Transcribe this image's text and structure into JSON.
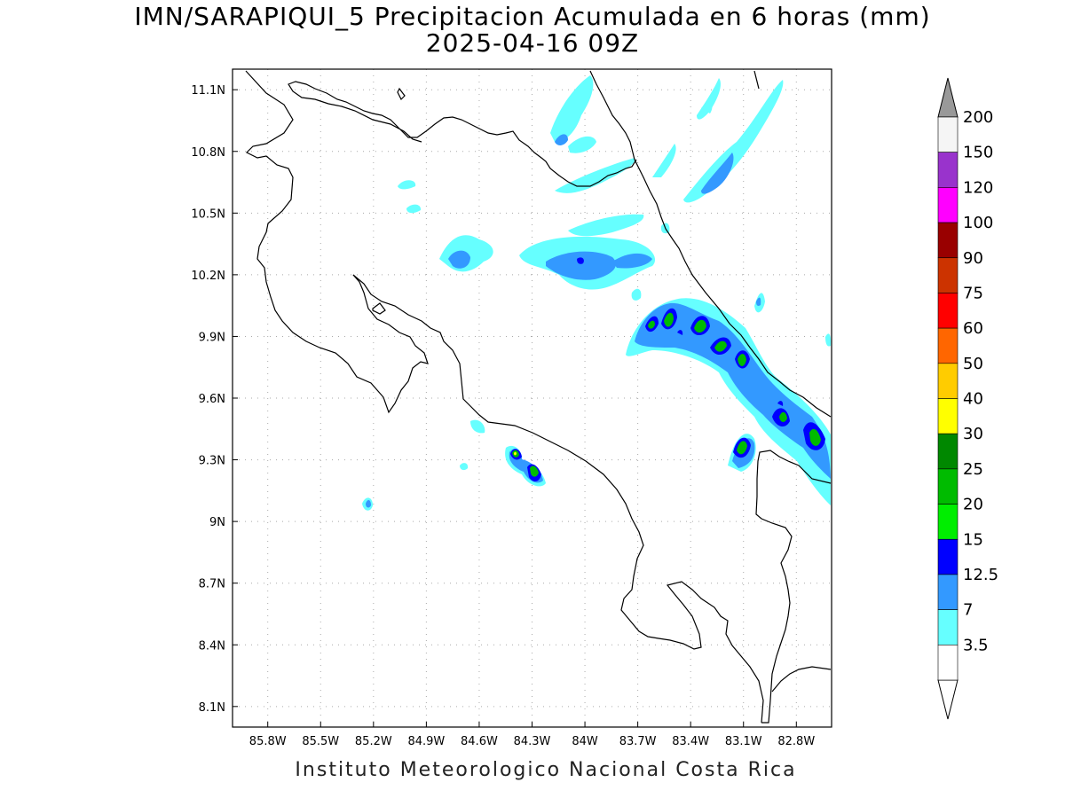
{
  "title": {
    "line1": "IMN/SARAPIQUI_5 Precipitacion Acumulada en 6 horas (mm)",
    "line2": "2025-04-16 09Z"
  },
  "footer": "Instituto Meteorologico Nacional Costa Rica",
  "axes": {
    "lon_min": -86.0,
    "lon_max": -82.6,
    "lat_min": 8.0,
    "lat_max": 11.2,
    "x_ticks": [
      {
        "value": -85.8,
        "label": "85.8W"
      },
      {
        "value": -85.5,
        "label": "85.5W"
      },
      {
        "value": -85.2,
        "label": "85.2W"
      },
      {
        "value": -84.9,
        "label": "84.9W"
      },
      {
        "value": -84.6,
        "label": "84.6W"
      },
      {
        "value": -84.3,
        "label": "84.3W"
      },
      {
        "value": -84.0,
        "label": "84W"
      },
      {
        "value": -83.7,
        "label": "83.7W"
      },
      {
        "value": -83.4,
        "label": "83.4W"
      },
      {
        "value": -83.1,
        "label": "83.1W"
      },
      {
        "value": -82.8,
        "label": "82.8W"
      }
    ],
    "y_ticks": [
      {
        "value": 8.1,
        "label": "8.1N"
      },
      {
        "value": 8.4,
        "label": "8.4N"
      },
      {
        "value": 8.7,
        "label": "8.7N"
      },
      {
        "value": 9.0,
        "label": "9N"
      },
      {
        "value": 9.3,
        "label": "9.3N"
      },
      {
        "value": 9.6,
        "label": "9.6N"
      },
      {
        "value": 9.9,
        "label": "9.9N"
      },
      {
        "value": 10.2,
        "label": "10.2N"
      },
      {
        "value": 10.5,
        "label": "10.5N"
      },
      {
        "value": 10.8,
        "label": "10.8N"
      },
      {
        "value": 11.1,
        "label": "11.1N"
      }
    ],
    "grid": "dotted"
  },
  "colorbar": {
    "levels": [
      {
        "label": "200",
        "color": "#f5f5f5"
      },
      {
        "label": "150",
        "color": "#9933cc"
      },
      {
        "label": "120",
        "color": "#ff00ff"
      },
      {
        "label": "100",
        "color": "#990000"
      },
      {
        "label": "90",
        "color": "#cc3300"
      },
      {
        "label": "75",
        "color": "#ff0000"
      },
      {
        "label": "60",
        "color": "#ff6600"
      },
      {
        "label": "50",
        "color": "#ffcc00"
      },
      {
        "label": "40",
        "color": "#ffff00"
      },
      {
        "label": "30",
        "color": "#008800"
      },
      {
        "label": "25",
        "color": "#00bb00"
      },
      {
        "label": "20",
        "color": "#00ee00"
      },
      {
        "label": "15",
        "color": "#0000ff"
      },
      {
        "label": "12.5",
        "color": "#3399ff"
      },
      {
        "label": "7",
        "color": "#66ffff"
      },
      {
        "label": "3.5",
        "color": "#ffffff"
      }
    ],
    "over_color": "#999999",
    "under_color": "#ffffff"
  },
  "precip_cells": [
    {
      "lon": -84.65,
      "lat": 10.35,
      "level": 7
    },
    {
      "lon": -83.95,
      "lat": 10.35,
      "level": 12.5
    },
    {
      "lon": -83.35,
      "lat": 10.8,
      "level": 7
    },
    {
      "lon": -83.9,
      "lat": 11.0,
      "level": 7
    },
    {
      "lon": -83.55,
      "lat": 10.0,
      "level": 25
    },
    {
      "lon": -83.45,
      "lat": 10.05,
      "level": 25
    },
    {
      "lon": -83.3,
      "lat": 10.0,
      "level": 25
    },
    {
      "lon": -83.15,
      "lat": 9.95,
      "level": 25
    },
    {
      "lon": -83.05,
      "lat": 9.85,
      "level": 25
    },
    {
      "lon": -82.95,
      "lat": 9.55,
      "level": 20
    },
    {
      "lon": -82.7,
      "lat": 9.45,
      "level": 25
    },
    {
      "lon": -83.05,
      "lat": 9.4,
      "level": 25
    },
    {
      "lon": -84.35,
      "lat": 9.37,
      "level": 25
    },
    {
      "lon": -84.25,
      "lat": 9.27,
      "level": 25
    },
    {
      "lon": -84.6,
      "lat": 9.52,
      "level": 7
    },
    {
      "lon": -85.2,
      "lat": 9.12,
      "level": 7
    }
  ]
}
